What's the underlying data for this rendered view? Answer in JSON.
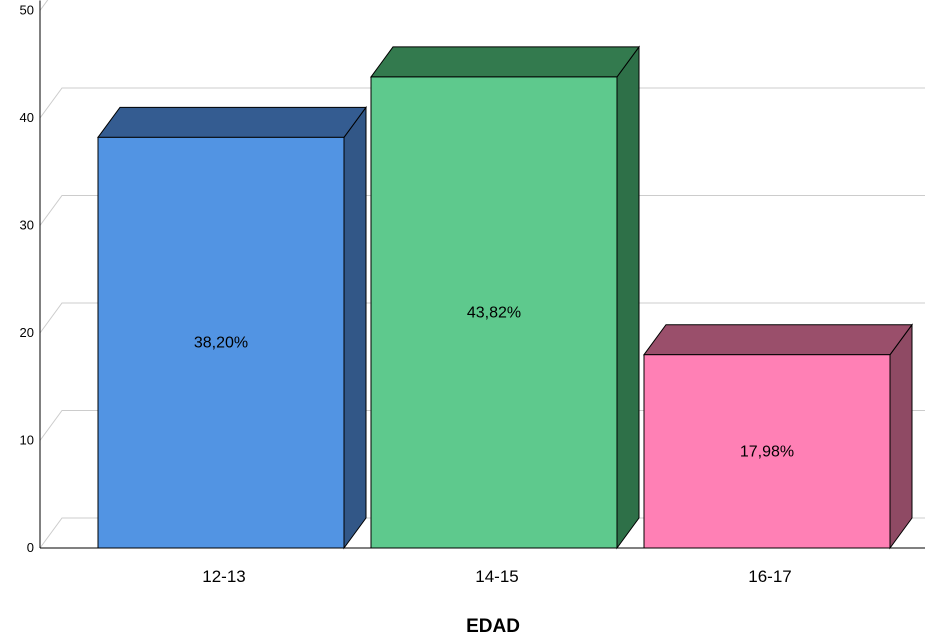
{
  "chart_data": {
    "type": "bar",
    "categories": [
      "12-13",
      "14-15",
      "16-17"
    ],
    "values": [
      38.2,
      43.82,
      17.98
    ],
    "data_labels": [
      "38,20%",
      "43,82%",
      "17,98%"
    ],
    "xlabel": "EDAD",
    "ylabel": "",
    "ylim": [
      0,
      50
    ],
    "yticks": [
      0,
      10,
      20,
      30,
      40,
      50
    ],
    "grid": true,
    "three_d": true,
    "colors": {
      "front": [
        "#5294e3",
        "#5ec98d",
        "#ff80b5"
      ],
      "top": [
        "#345c91",
        "#337a4e",
        "#9a4f6b"
      ],
      "side": [
        "#325787",
        "#2e7048",
        "#8f4a64"
      ],
      "grid": "#cccccc",
      "axis": "#000000",
      "outline": "#000000"
    }
  }
}
